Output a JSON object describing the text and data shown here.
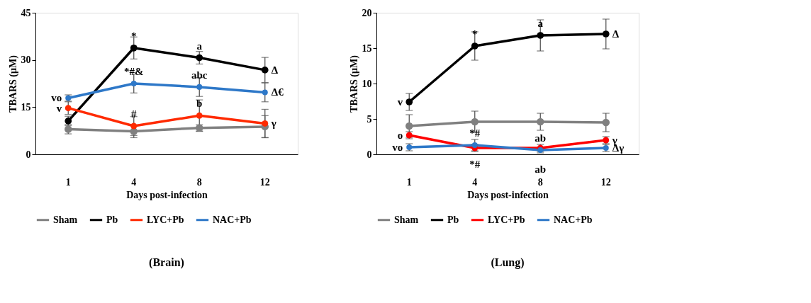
{
  "chart_data": [
    {
      "type": "line",
      "title": "(Brain)",
      "xlabel": "Days post-infection",
      "ylabel": "TBARS (µM)",
      "categories": [
        "1",
        "4",
        "8",
        "12"
      ],
      "ylim": [
        0,
        45
      ],
      "yticks": [
        0,
        15,
        30,
        45
      ],
      "grid": false,
      "legend": "bottom",
      "marker": "circle",
      "line_style": "solid",
      "series": [
        {
          "name": "Sham",
          "color": "#808080",
          "values": [
            8.0,
            7.3,
            8.4,
            8.8
          ],
          "errors": [
            1.5,
            2.0,
            1.0,
            3.5
          ]
        },
        {
          "name": "Pb",
          "color": "#000000",
          "values": [
            10.6,
            33.8,
            30.7,
            26.8
          ],
          "errors": [
            1.5,
            3.5,
            2.0,
            4.0
          ]
        },
        {
          "name": "LYC+Pb",
          "color": "#ff2a00",
          "values": [
            14.7,
            9.0,
            12.3,
            9.8
          ],
          "errors": [
            2.0,
            3.0,
            5.0,
            4.5
          ]
        },
        {
          "name": "NAC+Pb",
          "color": "#2e78c8",
          "values": [
            17.9,
            22.5,
            21.4,
            19.7
          ],
          "errors": [
            1.0,
            3.0,
            3.0,
            3.0
          ]
        }
      ],
      "annotations": [
        {
          "text": "*",
          "x": "4",
          "y": 33.8
        },
        {
          "text": "a",
          "x": "8",
          "y": 30.7
        },
        {
          "text": "Δ",
          "x": "12",
          "y": 26.8
        },
        {
          "text": "*#&",
          "x": "4",
          "y": 22.5
        },
        {
          "text": "abc",
          "x": "8",
          "y": 21.4
        },
        {
          "text": "Δ€",
          "x": "12",
          "y": 19.7
        },
        {
          "text": "vo",
          "x": "1",
          "y": 17.9
        },
        {
          "text": "v",
          "x": "1",
          "y": 14.7
        },
        {
          "text": "#",
          "x": "4",
          "y": 9.0
        },
        {
          "text": "b",
          "x": "8",
          "y": 12.3
        },
        {
          "text": "γ",
          "x": "12",
          "y": 9.8
        }
      ]
    },
    {
      "type": "line",
      "title": "(Lung)",
      "xlabel": "Days post-infection",
      "ylabel": "TBARS (µM)",
      "categories": [
        "1",
        "4",
        "8",
        "12"
      ],
      "ylim": [
        0,
        20
      ],
      "yticks": [
        0,
        5,
        10,
        15,
        20
      ],
      "grid": false,
      "legend": "bottom",
      "marker": "circle",
      "line_style": "solid",
      "series": [
        {
          "name": "Sham",
          "color": "#808080",
          "values": [
            4.0,
            4.6,
            4.6,
            4.5
          ],
          "errors": [
            1.6,
            1.5,
            1.2,
            1.3
          ]
        },
        {
          "name": "Pb",
          "color": "#000000",
          "values": [
            7.4,
            15.3,
            16.8,
            17.0
          ],
          "errors": [
            1.2,
            2.0,
            2.2,
            2.1
          ]
        },
        {
          "name": "LYC+Pb",
          "color": "#ff0000",
          "values": [
            2.7,
            0.9,
            0.9,
            2.0
          ],
          "errors": [
            0.5,
            0.5,
            0.5,
            0.5
          ]
        },
        {
          "name": "NAC+Pb",
          "color": "#2e78c8",
          "values": [
            1.0,
            1.3,
            0.6,
            0.9
          ],
          "errors": [
            0.5,
            0.8,
            0.4,
            0.5
          ]
        }
      ],
      "annotations": [
        {
          "text": "v",
          "x": "1",
          "y": 7.4
        },
        {
          "text": "*",
          "x": "4",
          "y": 15.3
        },
        {
          "text": "a",
          "x": "8",
          "y": 16.8
        },
        {
          "text": "Δ",
          "x": "12",
          "y": 17.0
        },
        {
          "text": "o",
          "x": "1",
          "y": 2.7
        },
        {
          "text": "vo",
          "x": "1",
          "y": 1.0
        },
        {
          "text": "*#",
          "x": "4",
          "y": 1.3
        },
        {
          "text": "*#",
          "x": "4",
          "y": 1.3
        },
        {
          "text": "ab",
          "x": "8",
          "y": 0.6
        },
        {
          "text": "ab",
          "x": "8",
          "y": 0.6
        },
        {
          "text": "γ",
          "x": "12",
          "y": 2.0
        },
        {
          "text": "Δγ",
          "x": "12",
          "y": 0.9
        }
      ]
    }
  ]
}
